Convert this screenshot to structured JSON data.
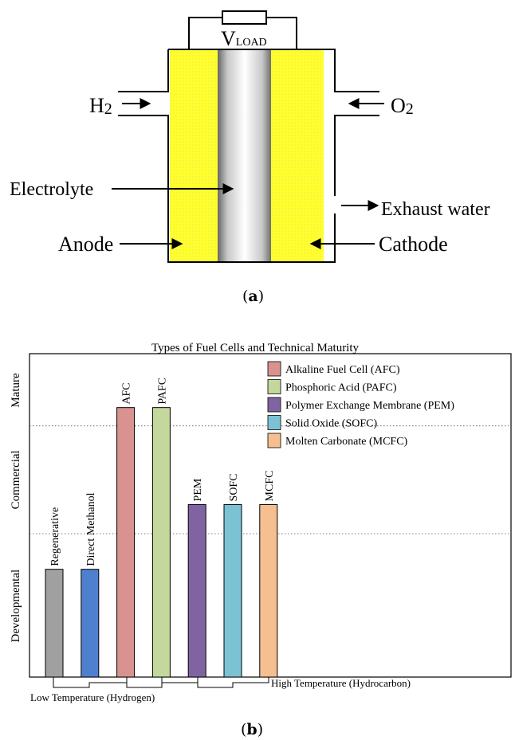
{
  "diagram_a": {
    "load_main": "V",
    "load_sub": "LOAD",
    "h2_main": "H",
    "h2_sub": "2",
    "o2_main": "O",
    "o2_sub": "2",
    "electrolyte": "Electrolyte",
    "exhaust": "Exhaust water",
    "anode": "Anode",
    "cathode": "Cathode",
    "caption_open": "(",
    "caption_letter": "a",
    "caption_close": ")",
    "colors": {
      "electrode": "#ffff2e",
      "electrolyte_edge": "#555555",
      "electrolyte_center": "#ffffff"
    }
  },
  "chart_b": {
    "caption_open": "(",
    "caption_letter": "b",
    "caption_close": ")",
    "temp_low": "Low Temperature (Hydrogen)",
    "temp_high": "High Temperature (Hydrocarbon)"
  },
  "chart_data": {
    "type": "bar",
    "title": "Types of Fuel Cells and Technical Maturity",
    "categories": [
      "Regenerative",
      "Direct Methanol",
      "AFC",
      "PAFC",
      "PEM",
      "SOFC",
      "MCFC"
    ],
    "y_levels": [
      "Developmental",
      "Commercial",
      "Mature"
    ],
    "values": [
      1,
      1,
      2.5,
      2.5,
      1.6,
      1.6,
      1.6
    ],
    "ylim": [
      0,
      3
    ],
    "colors": [
      "#a0a0a0",
      "#4f80d0",
      "#d89290",
      "#c4d79c",
      "#8064a2",
      "#7bc3d3",
      "#f6bf8f"
    ],
    "legend": [
      {
        "label": "Alkaline Fuel Cell (AFC)",
        "color": "#d89290"
      },
      {
        "label": "Phosphoric Acid (PAFC)",
        "color": "#c4d79c"
      },
      {
        "label": "Polymer Exchange Membrane (PEM)",
        "color": "#8064a2"
      },
      {
        "label": "Solid Oxide (SOFC)",
        "color": "#7bc3d3"
      },
      {
        "label": "Molten Carbonate (MCFC)",
        "color": "#f6bf8f"
      }
    ],
    "legend_position": "top-right",
    "grid": "dotted level separators"
  }
}
